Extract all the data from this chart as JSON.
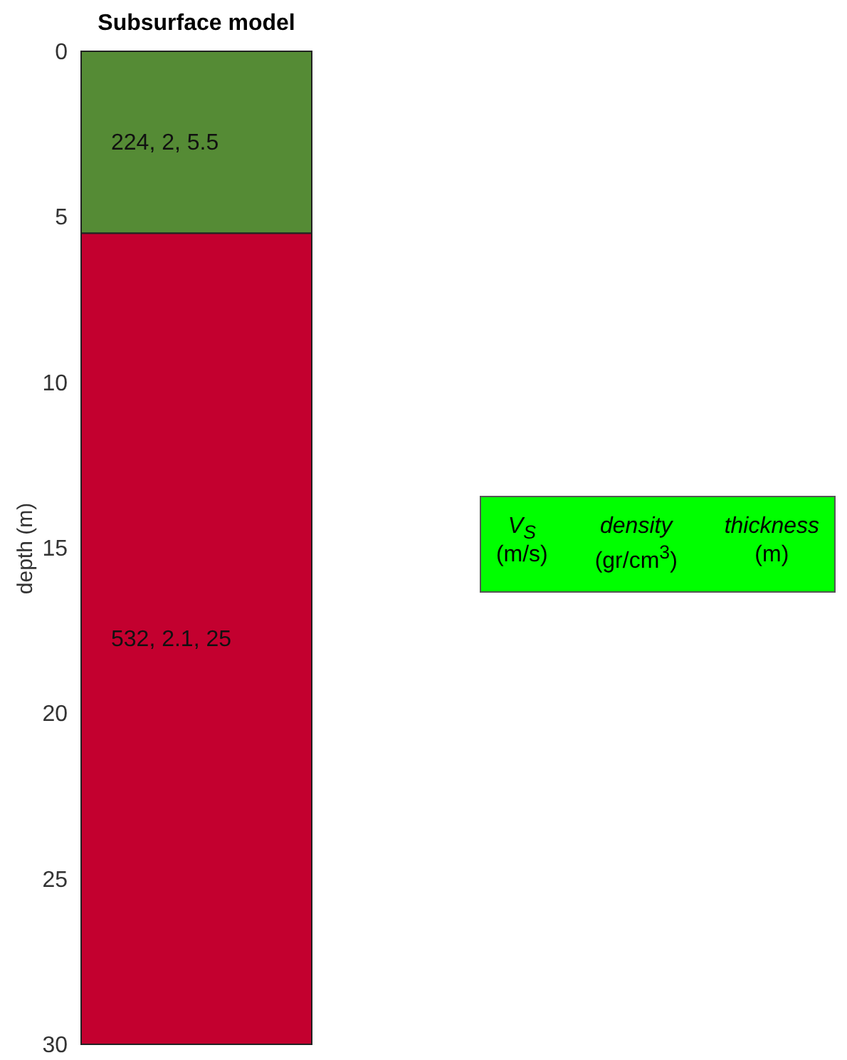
{
  "chart_data": {
    "type": "bar",
    "title": "Subsurface model",
    "ylabel": "depth (m)",
    "categories": [
      null
    ],
    "stacked": true,
    "series": [
      {
        "color": "#558b35",
        "values": [
          5.5
        ],
        "value_labels": [
          "224, 2, 5.5"
        ]
      },
      {
        "color": "#c3002f",
        "values": [
          24.5
        ],
        "value_labels": [
          "532, 2.1, 25"
        ]
      }
    ],
    "ylim": [
      30,
      0
    ],
    "yticks": [
      0,
      5,
      10,
      15,
      20,
      25,
      30
    ],
    "grid": false,
    "annotations": [
      "V$_{S}$",
      "density",
      "thickness",
      "(m/s)",
      "(gr/cm$^{3}$)",
      "(m)"
    ]
  }
}
